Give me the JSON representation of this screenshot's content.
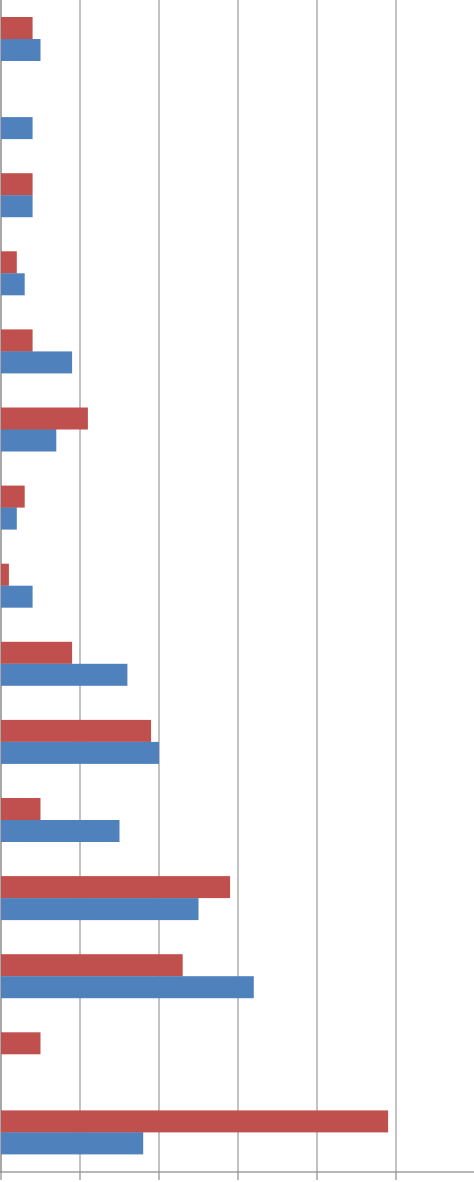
{
  "chart_data": {
    "type": "bar",
    "orientation": "horizontal",
    "title": "",
    "xlabel": "",
    "ylabel": "",
    "grid": true,
    "legend": "none",
    "categories": [
      "",
      "",
      "",
      "",
      "",
      "",
      "",
      "",
      "",
      "",
      "",
      "",
      "",
      "",
      ""
    ],
    "xlim": [
      0,
      6
    ],
    "series": [
      {
        "color": "#c0504d",
        "values": [
          0.4,
          0,
          0.4,
          0.2,
          0.4,
          1.1,
          0.3,
          0.1,
          0.9,
          1.9,
          0.5,
          2.9,
          2.3,
          0.5,
          4.9
        ]
      },
      {
        "color": "#4f81bd",
        "values": [
          0.5,
          0.4,
          0.4,
          0.3,
          0.9,
          0.7,
          0.2,
          0.4,
          1.6,
          2.0,
          1.5,
          2.5,
          3.2,
          0,
          1.8
        ]
      }
    ]
  }
}
